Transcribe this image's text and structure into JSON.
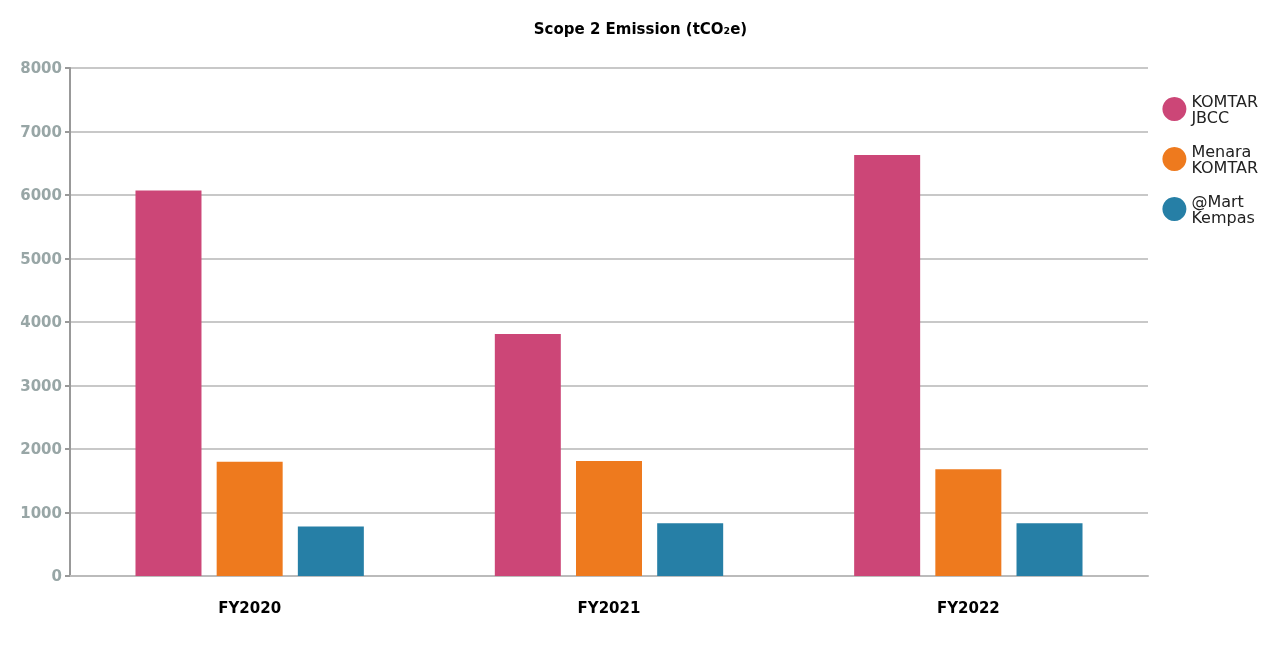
{
  "chart_data": {
    "type": "bar",
    "title": "Scope 2 Emission (tCO₂e)",
    "categories": [
      "FY2020",
      "FY2021",
      "FY2022"
    ],
    "series": [
      {
        "name": "KOMTAR\nJBCC",
        "color": "#cc4677",
        "values": [
          6070,
          3810,
          6630
        ]
      },
      {
        "name": "Menara\nKOMTAR",
        "color": "#ee7a1e",
        "values": [
          1800,
          1810,
          1680
        ]
      },
      {
        "name": "@Mart\nKempas",
        "color": "#267fa6",
        "values": [
          780,
          830,
          830
        ]
      }
    ],
    "ylim": [
      0,
      8000
    ],
    "yticks": [
      0,
      1000,
      2000,
      3000,
      4000,
      5000,
      6000,
      7000,
      8000
    ],
    "grid": "y",
    "legend": "right"
  }
}
